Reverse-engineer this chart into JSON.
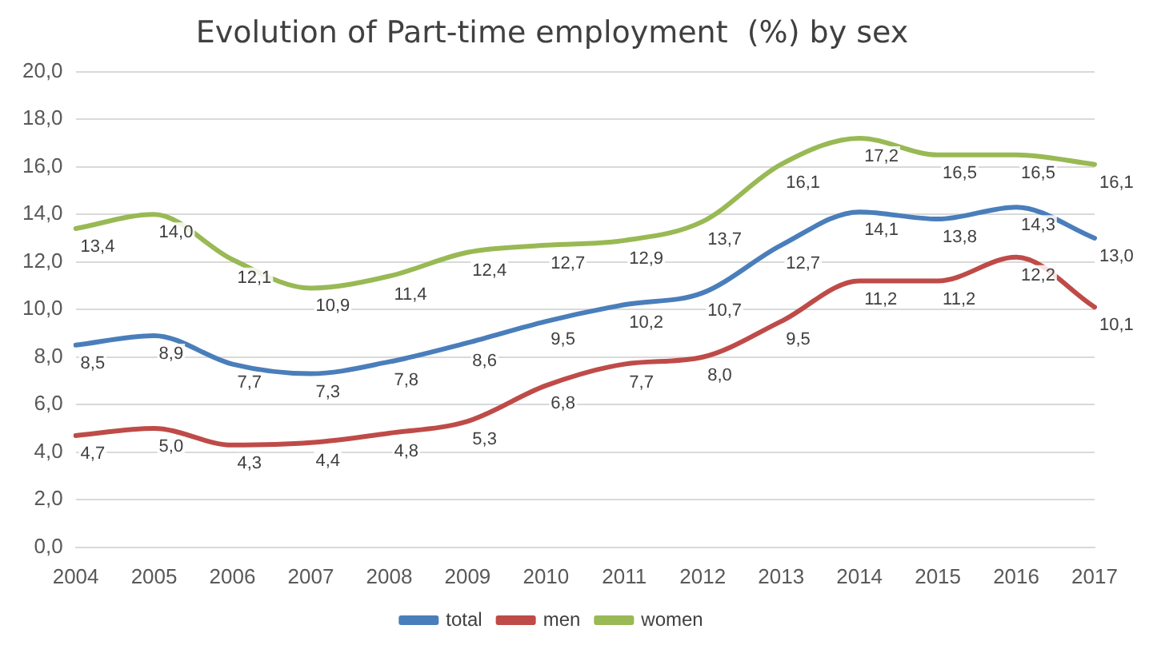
{
  "chart_data": {
    "type": "line",
    "title": "Evolution of Part-time employment  (%) by sex",
    "categories": [
      "2004",
      "2005",
      "2006",
      "2007",
      "2008",
      "2009",
      "2010",
      "2011",
      "2012",
      "2013",
      "2014",
      "2015",
      "2016",
      "2017"
    ],
    "series": [
      {
        "name": "total",
        "color": "#4a7ebb",
        "values": [
          8.5,
          8.9,
          7.7,
          7.3,
          7.8,
          8.6,
          9.5,
          10.2,
          10.7,
          12.7,
          14.1,
          13.8,
          14.3,
          13.0
        ],
        "value_labels": [
          "8,5",
          "8,9",
          "7,7",
          "7,3",
          "7,8",
          "8,6",
          "9,5",
          "10,2",
          "10,7",
          "12,7",
          "14,1",
          "13,8",
          "14,3",
          "13,0"
        ]
      },
      {
        "name": "men",
        "color": "#be4b48",
        "values": [
          4.7,
          5.0,
          4.3,
          4.4,
          4.8,
          5.3,
          6.8,
          7.7,
          8.0,
          9.5,
          11.2,
          11.2,
          12.2,
          10.1
        ],
        "value_labels": [
          "4,7",
          "5,0",
          "4,3",
          "4,4",
          "4,8",
          "5,3",
          "6,8",
          "7,7",
          "8,0",
          "9,5",
          "11,2",
          "11,2",
          "12,2",
          "10,1"
        ]
      },
      {
        "name": "women",
        "color": "#98b954",
        "values": [
          13.4,
          14.0,
          12.1,
          10.9,
          11.4,
          12.4,
          12.7,
          12.9,
          13.7,
          16.1,
          17.2,
          16.5,
          16.5,
          16.1
        ],
        "value_labels": [
          "13,4",
          "14,0",
          "12,1",
          "10,9",
          "11,4",
          "12,4",
          "12,7",
          "12,9",
          "13,7",
          "16,1",
          "17,2",
          "16,5",
          "16,5",
          "16,1"
        ]
      }
    ],
    "ylim": [
      0,
      20
    ],
    "yticks": [
      {
        "value": 0,
        "label": "0,0"
      },
      {
        "value": 2,
        "label": "2,0"
      },
      {
        "value": 4,
        "label": "4,0"
      },
      {
        "value": 6,
        "label": "6,0"
      },
      {
        "value": 8,
        "label": "8,0"
      },
      {
        "value": 10,
        "label": "10,0"
      },
      {
        "value": 12,
        "label": "12,0"
      },
      {
        "value": 14,
        "label": "14,0"
      },
      {
        "value": 16,
        "label": "16,0"
      },
      {
        "value": 18,
        "label": "18,0"
      },
      {
        "value": 20,
        "label": "20,0"
      }
    ],
    "grid": "y",
    "legend": "bottom",
    "marker": "none",
    "line_style": "solid"
  }
}
